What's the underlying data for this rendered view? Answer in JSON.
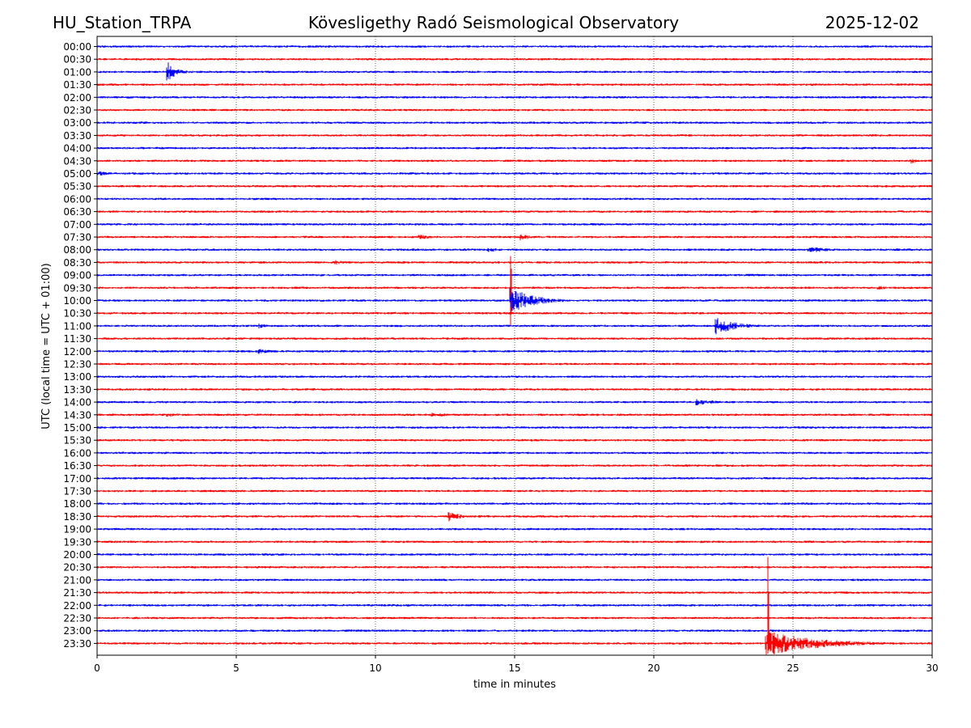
{
  "header": {
    "station": "HU_Station_TRPA",
    "observatory": "Kövesligethy Radó Seismological Observatory",
    "date": "2025-12-02"
  },
  "chart_data": {
    "type": "line",
    "title": "Kövesligethy Radó Seismological Observatory",
    "xlabel": "time in minutes",
    "ylabel": "UTC (local time = UTC + 01:00)",
    "xlim": [
      0,
      30
    ],
    "xticks": [
      0,
      5,
      10,
      15,
      20,
      25,
      30
    ],
    "grid": "vertical dotted at 5-minute ticks",
    "trace_colors": [
      "#0000ff",
      "#ff0000"
    ],
    "rows": [
      "00:00",
      "00:30",
      "01:00",
      "01:30",
      "02:00",
      "02:30",
      "03:00",
      "03:30",
      "04:00",
      "04:30",
      "05:00",
      "05:30",
      "06:00",
      "06:30",
      "07:00",
      "07:30",
      "08:00",
      "08:30",
      "09:00",
      "09:30",
      "10:00",
      "10:30",
      "11:00",
      "11:30",
      "12:00",
      "12:30",
      "13:00",
      "13:30",
      "14:00",
      "14:30",
      "15:00",
      "15:30",
      "16:00",
      "16:30",
      "17:00",
      "17:30",
      "18:00",
      "18:30",
      "19:00",
      "19:30",
      "20:00",
      "20:30",
      "21:00",
      "21:30",
      "22:00",
      "22:30",
      "23:00",
      "23:30"
    ],
    "events": [
      {
        "row": "01:00",
        "start_min": 2.5,
        "duration_min": 1.0,
        "amplitude": 14
      },
      {
        "row": "04:30",
        "start_min": 29.2,
        "duration_min": 0.8,
        "amplitude": 4
      },
      {
        "row": "05:00",
        "start_min": 0.0,
        "duration_min": 1.5,
        "amplitude": 3
      },
      {
        "row": "07:30",
        "start_min": 11.5,
        "duration_min": 2.5,
        "amplitude": 3
      },
      {
        "row": "07:30",
        "start_min": 15.2,
        "duration_min": 1.5,
        "amplitude": 4
      },
      {
        "row": "08:00",
        "start_min": 14.0,
        "duration_min": 1.5,
        "amplitude": 3
      },
      {
        "row": "08:00",
        "start_min": 25.5,
        "duration_min": 2.5,
        "amplitude": 4
      },
      {
        "row": "08:30",
        "start_min": 8.5,
        "duration_min": 1.5,
        "amplitude": 3
      },
      {
        "row": "09:30",
        "start_min": 28.0,
        "duration_min": 1.3,
        "amplitude": 3
      },
      {
        "row": "10:00",
        "start_min": 14.8,
        "duration_min": 2.5,
        "amplitude": 18
      },
      {
        "row": "11:00",
        "start_min": 5.8,
        "duration_min": 1.0,
        "amplitude": 3
      },
      {
        "row": "11:00",
        "start_min": 22.2,
        "duration_min": 2.2,
        "amplitude": 12
      },
      {
        "row": "12:00",
        "start_min": 5.7,
        "duration_min": 1.4,
        "amplitude": 4
      },
      {
        "row": "14:00",
        "start_min": 21.5,
        "duration_min": 2.5,
        "amplitude": 4
      },
      {
        "row": "14:30",
        "start_min": 2.5,
        "duration_min": 2.0,
        "amplitude": 3
      },
      {
        "row": "14:30",
        "start_min": 12.0,
        "duration_min": 2.0,
        "amplitude": 3
      },
      {
        "row": "18:30",
        "start_min": 12.6,
        "duration_min": 1.2,
        "amplitude": 8
      },
      {
        "row": "23:30",
        "start_min": 24.0,
        "duration_min": 5.5,
        "amplitude": 16
      }
    ],
    "large_spikes": [
      {
        "row": "09:30",
        "minute": 14.85,
        "up_rows": 2.5,
        "down_rows": 3.0
      },
      {
        "row": "23:30",
        "minute": 24.1,
        "up_rows": 6.8,
        "down_rows": 0.8
      }
    ]
  }
}
